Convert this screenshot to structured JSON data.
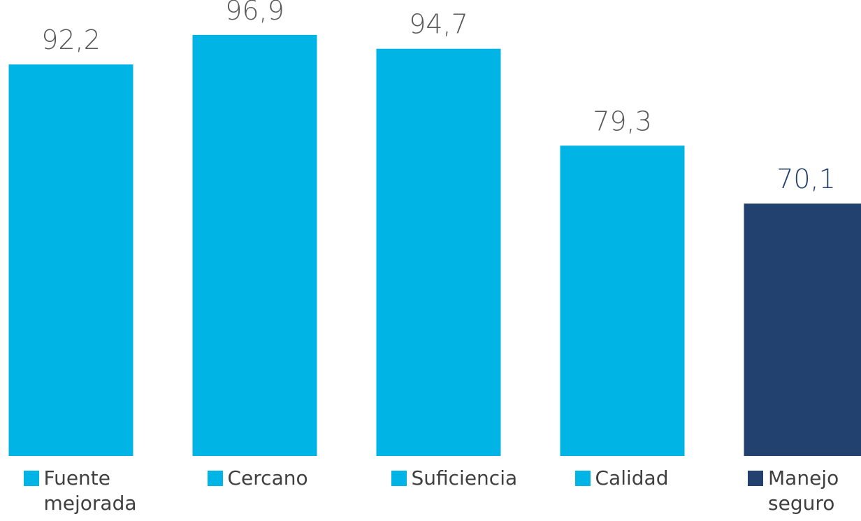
{
  "chart_data": {
    "type": "bar",
    "categories": [
      "Fuente mejorada",
      "Cercano",
      "Suficiencia",
      "Calidad",
      "Manejo seguro"
    ],
    "values": [
      92.2,
      96.9,
      94.7,
      79.3,
      70.1
    ],
    "value_labels": [
      "92,2",
      "96,9",
      "94,7",
      "79,3",
      "70,1"
    ],
    "colors": [
      "#00b4e6",
      "#00b4e6",
      "#00b4e6",
      "#00b4e6",
      "#23416f"
    ],
    "value_label_colors": [
      "#595959",
      "#595959",
      "#595959",
      "#595959",
      "#23416f"
    ],
    "ylim": [
      30,
      100
    ]
  }
}
